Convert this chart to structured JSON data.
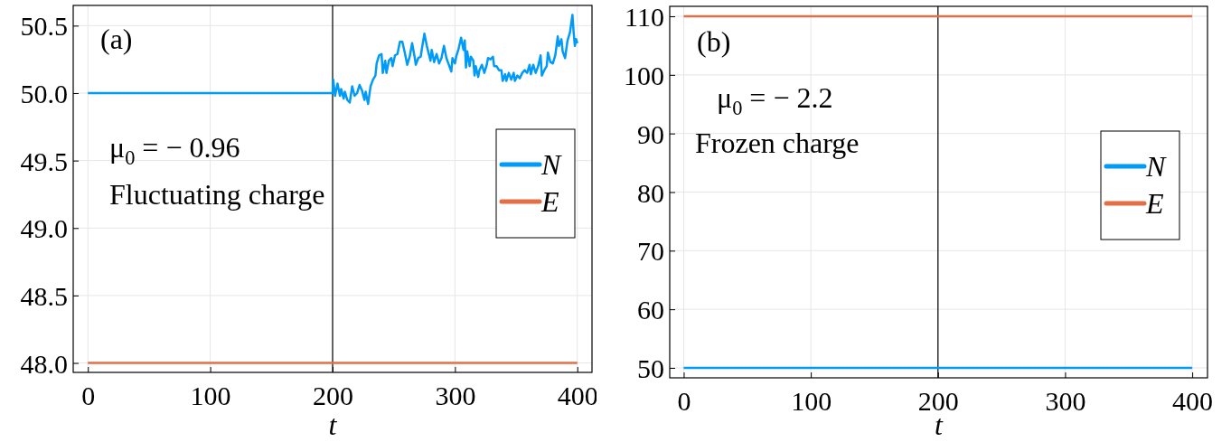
{
  "chart_data": [
    {
      "type": "line",
      "xlabel": "t",
      "xlim": [
        -12,
        412
      ],
      "ylim": [
        47.93,
        50.65
      ],
      "xticks": [
        0,
        100,
        200,
        300,
        400
      ],
      "yticks": [
        {
          "value": 48,
          "label": "48.0"
        },
        48.5,
        {
          "value": 49,
          "label": "49.0"
        },
        49.5,
        {
          "value": 50,
          "label": "50.0"
        },
        50.5
      ],
      "grid": true,
      "legend": "right",
      "annotations": [
        "(a)",
        "μ$_{0}$ = − 0.96",
        "Fluctuating charge"
      ],
      "ref_lines": [
        {
          "axis": "x",
          "value": 200,
          "color": "#000000"
        }
      ],
      "series": [
        {
          "name": "N",
          "color": "#009af9",
          "x": [
            0,
            200,
            200.5,
            202,
            204,
            206,
            207,
            209,
            210,
            212,
            214,
            216,
            218,
            220,
            222,
            224,
            226,
            227,
            229,
            231,
            233,
            235,
            236,
            238,
            240,
            241,
            243,
            244,
            246,
            248,
            249,
            251,
            253,
            255,
            257,
            259,
            261,
            263,
            265,
            267,
            268,
            270,
            272,
            273,
            275,
            277,
            280,
            281,
            283,
            285,
            287,
            289,
            291,
            293,
            295,
            297,
            298,
            300,
            301,
            303,
            304,
            305,
            307,
            308,
            309,
            310,
            312,
            313,
            315,
            316,
            317,
            319,
            320,
            322,
            324,
            326,
            327,
            329,
            331,
            332,
            334,
            336,
            338,
            339,
            341,
            342,
            344,
            346,
            348,
            349,
            351,
            353,
            355,
            357,
            359,
            361,
            362,
            364,
            366,
            368,
            370,
            371,
            373,
            375,
            376,
            378,
            380,
            382,
            384,
            385,
            387,
            388,
            390,
            392,
            394,
            396,
            397,
            398,
            399,
            400
          ],
          "values": [
            50,
            50,
            50.1,
            49.98,
            50.07,
            49.98,
            50.03,
            49.96,
            50.01,
            49.95,
            49.93,
            50.05,
            49.98,
            50.0,
            50.06,
            50.02,
            49.95,
            50.01,
            49.92,
            50.05,
            50.1,
            50.13,
            50.22,
            50.28,
            50.29,
            50.15,
            50.24,
            50.15,
            50.24,
            50.26,
            50.2,
            50.28,
            50.29,
            50.38,
            50.38,
            50.3,
            50.21,
            50.27,
            50.37,
            50.27,
            50.21,
            50.26,
            50.27,
            50.33,
            50.44,
            50.35,
            50.24,
            50.32,
            50.23,
            50.29,
            50.22,
            50.26,
            50.35,
            50.26,
            50.21,
            50.16,
            50.26,
            50.22,
            50.27,
            50.33,
            50.37,
            50.41,
            50.32,
            50.39,
            50.19,
            50.31,
            50.2,
            50.27,
            50.24,
            50.13,
            50.2,
            50.12,
            50.17,
            50.21,
            50.15,
            50.21,
            50.26,
            50.25,
            50.27,
            50.2,
            50.2,
            50.17,
            50.17,
            50.09,
            50.14,
            50.09,
            50.15,
            50.1,
            50.15,
            50.09,
            50.13,
            50.11,
            50.15,
            50.17,
            50.15,
            50.21,
            50.14,
            50.21,
            50.15,
            50.2,
            50.28,
            50.13,
            50.17,
            50.2,
            50.3,
            50.23,
            50.22,
            50.28,
            50.42,
            50.35,
            50.4,
            50.31,
            50.26,
            50.39,
            50.45,
            50.58,
            50.45,
            50.35,
            50.4,
            50.37
          ]
        },
        {
          "name": "E",
          "color": "#e26f46",
          "x": [
            0,
            400
          ],
          "values": [
            48,
            48
          ]
        }
      ]
    },
    {
      "type": "line",
      "xlabel": "t",
      "xlim": [
        -11,
        412
      ],
      "ylim": [
        48.3,
        111.7
      ],
      "xticks": [
        0,
        100,
        200,
        300,
        400
      ],
      "yticks": [
        50,
        60,
        70,
        80,
        90,
        100,
        110
      ],
      "grid": true,
      "legend": "right",
      "annotations": [
        "(b)",
        "μ$_{0}$ = − 2.2",
        "Frozen charge"
      ],
      "ref_lines": [
        {
          "axis": "x",
          "value": 200,
          "color": "#000000"
        }
      ],
      "series": [
        {
          "name": "N",
          "color": "#009af9",
          "x": [
            0,
            400
          ],
          "values": [
            50,
            50
          ]
        },
        {
          "name": "E",
          "color": "#e26f46",
          "x": [
            0,
            400
          ],
          "values": [
            110,
            110
          ]
        }
      ]
    }
  ]
}
